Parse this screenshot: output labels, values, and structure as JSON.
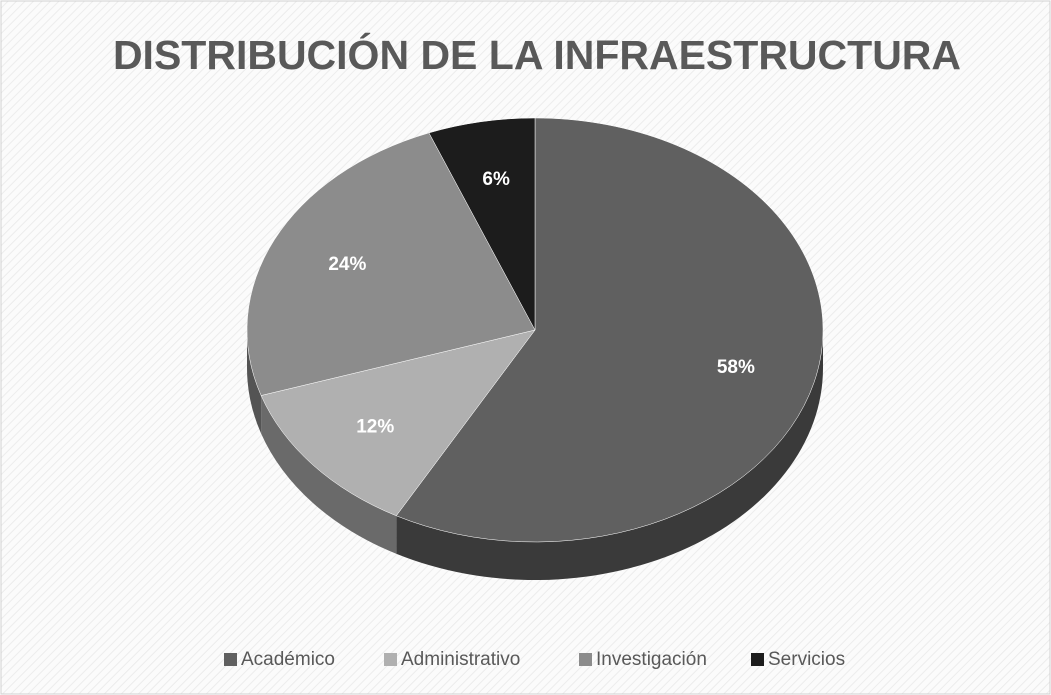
{
  "chart_data": {
    "type": "pie",
    "title": "DISTRIBUCIÓN DE LA INFRAESTRUCTURA",
    "categories": [
      "Académico",
      "Administrativo",
      "Investigación",
      "Servicios"
    ],
    "values": [
      58,
      12,
      24,
      6
    ],
    "value_labels": [
      "58%",
      "12%",
      "24%",
      "6%"
    ],
    "colors": [
      "#606060",
      "#b0b0b0",
      "#8c8c8c",
      "#1c1c1c"
    ],
    "legend": "bottom"
  }
}
